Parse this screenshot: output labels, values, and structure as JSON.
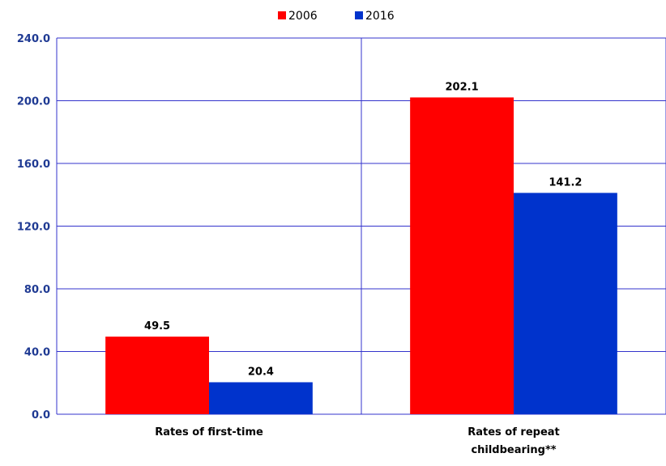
{
  "chart_data": {
    "type": "bar",
    "title": "",
    "xlabel": "",
    "ylabel": "",
    "categories": [
      [
        "Rates of first-time"
      ],
      [
        "Rates of repeat",
        "childbearing**"
      ]
    ],
    "series": [
      {
        "name": "2006",
        "color": "#ff0000",
        "values": [
          49.5,
          202.1
        ]
      },
      {
        "name": "2016",
        "color": "#0033cc",
        "values": [
          20.4,
          141.2
        ]
      }
    ],
    "ylim": [
      0,
      240
    ],
    "yticks": [
      "0.0",
      "40.0",
      "80.0",
      "120.0",
      "160.0",
      "200.0",
      "240.0"
    ],
    "grid": true,
    "gridline_color": "#3333cc",
    "legend_position": "top-center"
  }
}
